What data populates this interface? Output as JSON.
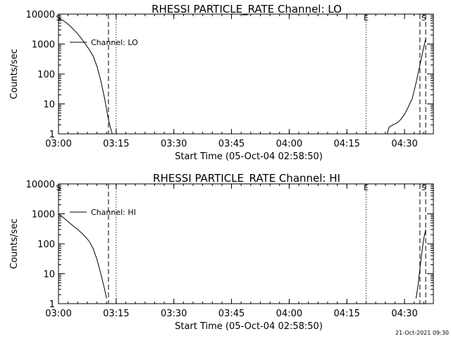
{
  "footer": "21-Oct-2021 09:30",
  "chart_data": [
    {
      "type": "line",
      "title": "RHESSI PARTICLE_RATE Channel: LO",
      "xlabel": "Start Time (05-Oct-04 02:58:50)",
      "ylabel": "Counts/sec",
      "y_scale": "log",
      "xlim": [
        "03:00",
        "04:37:30"
      ],
      "ylim": [
        1,
        10000
      ],
      "x_ticks": [
        "03:00",
        "03:15",
        "03:30",
        "03:45",
        "04:00",
        "04:15",
        "04:30"
      ],
      "y_ticks": [
        "1",
        "10",
        "100",
        "1000",
        "10000"
      ],
      "legend": {
        "position": "top-left",
        "entries": [
          "Channel: LO"
        ]
      },
      "series": [
        {
          "name": "Channel: LO",
          "segments": [
            {
              "x": [
                "03:00",
                "03:01",
                "03:02",
                "03:03",
                "03:04",
                "03:05",
                "03:06",
                "03:07",
                "03:08",
                "03:09",
                "03:10",
                "03:11",
                "03:12",
                "03:13",
                "03:13:30",
                "03:14"
              ],
              "y": [
                7000,
                6300,
                5200,
                4000,
                3000,
                2200,
                1500,
                1000,
                650,
                400,
                180,
                60,
                15,
                3,
                1.6,
                1
              ]
            },
            {
              "x": [
                "04:25:30",
                "04:26",
                "04:27",
                "04:28",
                "04:29",
                "04:30",
                "04:31",
                "04:32",
                "04:33",
                "04:34",
                "04:35",
                "04:35:30"
              ],
              "y": [
                1,
                1.7,
                2,
                2.3,
                3,
                4.5,
                8,
                15,
                50,
                200,
                800,
                1500
              ]
            }
          ]
        }
      ],
      "annotations": [
        {
          "label": "S",
          "x": "03:00"
        },
        {
          "label": "E",
          "x": "04:20"
        },
        {
          "label": "S",
          "x": "04:35"
        }
      ],
      "markers": [
        {
          "x": "03:13",
          "style": "dashed"
        },
        {
          "x": "03:15",
          "style": "dotted"
        },
        {
          "x": "04:20",
          "style": "dotted"
        },
        {
          "x": "04:34",
          "style": "dashed"
        },
        {
          "x": "04:35:30",
          "style": "dashed"
        }
      ]
    },
    {
      "type": "line",
      "title": "RHESSI PARTICLE_RATE Channel: HI",
      "xlabel": "Start Time (05-Oct-04 02:58:50)",
      "ylabel": "Counts/sec",
      "y_scale": "log",
      "xlim": [
        "03:00",
        "04:37:30"
      ],
      "ylim": [
        1,
        10000
      ],
      "x_ticks": [
        "03:00",
        "03:15",
        "03:30",
        "03:45",
        "04:00",
        "04:15",
        "04:30"
      ],
      "y_ticks": [
        "1",
        "10",
        "100",
        "1000",
        "10000"
      ],
      "legend": {
        "position": "top-left",
        "entries": [
          "Channel: HI"
        ]
      },
      "series": [
        {
          "name": "Channel: HI",
          "segments": [
            {
              "x": [
                "03:00",
                "03:01",
                "03:02",
                "03:03",
                "03:04",
                "03:05",
                "03:06",
                "03:07",
                "03:08",
                "03:09",
                "03:10",
                "03:11",
                "03:12",
                "03:12:30"
              ],
              "y": [
                1000,
                800,
                620,
                480,
                380,
                300,
                230,
                170,
                120,
                70,
                30,
                10,
                3,
                1.5
              ]
            },
            {
              "x": [
                "04:33",
                "04:33:30",
                "04:34",
                "04:34:30",
                "04:35",
                "04:35:30"
              ],
              "y": [
                1.5,
                4,
                15,
                50,
                150,
                300
              ]
            }
          ]
        }
      ],
      "annotations": [
        {
          "label": "S",
          "x": "03:00"
        },
        {
          "label": "E",
          "x": "04:20"
        },
        {
          "label": "S",
          "x": "04:35"
        }
      ],
      "markers": [
        {
          "x": "03:13",
          "style": "dashed"
        },
        {
          "x": "03:15",
          "style": "dotted"
        },
        {
          "x": "04:20",
          "style": "dotted"
        },
        {
          "x": "04:34",
          "style": "dashed"
        },
        {
          "x": "04:35:30",
          "style": "dashed"
        }
      ]
    }
  ]
}
